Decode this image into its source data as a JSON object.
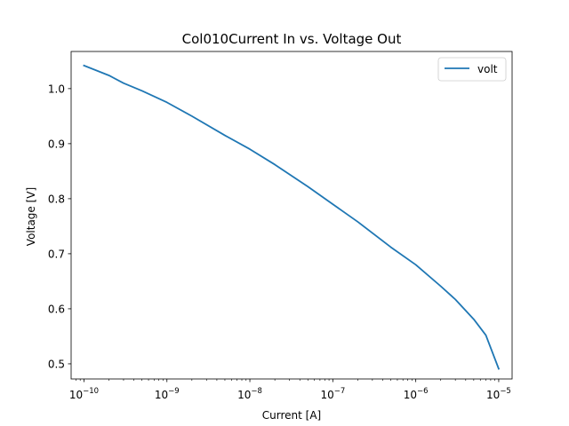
{
  "chart_data": {
    "type": "line",
    "title": "Col010Current In vs. Voltage Out",
    "xlabel": "Current [A]",
    "ylabel": "Voltage [V]",
    "x_scale": "log",
    "xlim": [
      7e-11,
      1.45e-05
    ],
    "ylim": [
      0.4725,
      1.0675
    ],
    "x_ticks": [
      {
        "value": 1e-10,
        "base": "10",
        "exp": "−10"
      },
      {
        "value": 1e-09,
        "base": "10",
        "exp": "−9"
      },
      {
        "value": 1e-08,
        "base": "10",
        "exp": "−8"
      },
      {
        "value": 1e-07,
        "base": "10",
        "exp": "−7"
      },
      {
        "value": 1e-06,
        "base": "10",
        "exp": "−6"
      },
      {
        "value": 1e-05,
        "base": "10",
        "exp": "−5"
      }
    ],
    "y_ticks": [
      "0.5",
      "0.6",
      "0.7",
      "0.8",
      "0.9",
      "1.0"
    ],
    "grid": false,
    "legend_position": "top-right",
    "series": [
      {
        "name": "volt",
        "color": "#1f77b4",
        "x": [
          1e-10,
          2e-10,
          3e-10,
          5e-10,
          1e-09,
          2e-09,
          5e-09,
          1e-08,
          2e-08,
          5e-08,
          1e-07,
          2e-07,
          5e-07,
          1e-06,
          2e-06,
          3e-06,
          5e-06,
          7e-06,
          1e-05
        ],
        "y": [
          1.042,
          1.024,
          1.01,
          0.996,
          0.975,
          0.95,
          0.915,
          0.89,
          0.862,
          0.822,
          0.79,
          0.758,
          0.712,
          0.68,
          0.641,
          0.617,
          0.581,
          0.552,
          0.491
        ]
      }
    ]
  }
}
